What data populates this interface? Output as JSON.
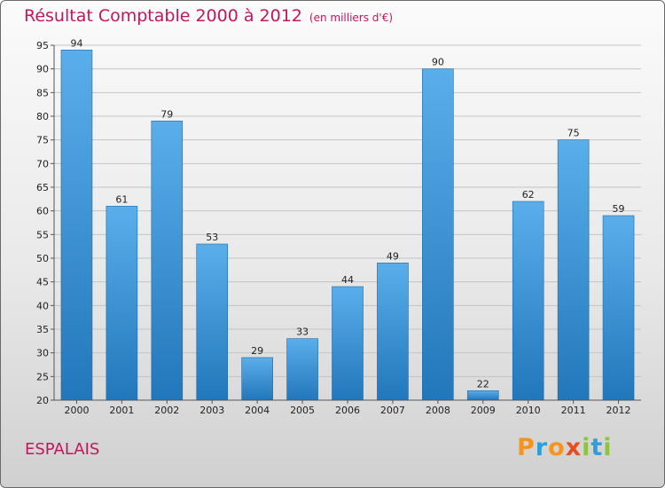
{
  "chart_data": {
    "type": "bar",
    "title": "Résultat Comptable 2000 à 2012",
    "subtitle": "(en milliers d'€)",
    "categories": [
      "2000",
      "2001",
      "2002",
      "2003",
      "2004",
      "2005",
      "2006",
      "2007",
      "2008",
      "2009",
      "2010",
      "2011",
      "2012"
    ],
    "values": [
      94,
      61,
      79,
      53,
      29,
      33,
      44,
      49,
      90,
      22,
      62,
      75,
      59
    ],
    "ylim": [
      20,
      95
    ],
    "yticks": [
      20,
      25,
      30,
      35,
      40,
      45,
      50,
      55,
      60,
      65,
      70,
      75,
      80,
      85,
      90,
      95
    ],
    "grid": true,
    "xlabel": "",
    "ylabel": ""
  },
  "commune": "ESPALAIS",
  "logo": {
    "letters": [
      "P",
      "r",
      "o",
      "x",
      "i",
      "t",
      "i"
    ],
    "colors": [
      "#f7941d",
      "#2e9fd9",
      "#f7941d",
      "#e84e1b",
      "#8cc63f",
      "#2e9fd9",
      "#8cc63f"
    ]
  },
  "colors": {
    "accent": "#c2185b",
    "bar_top": "#5aaeea",
    "bar_bottom": "#2277bb"
  }
}
